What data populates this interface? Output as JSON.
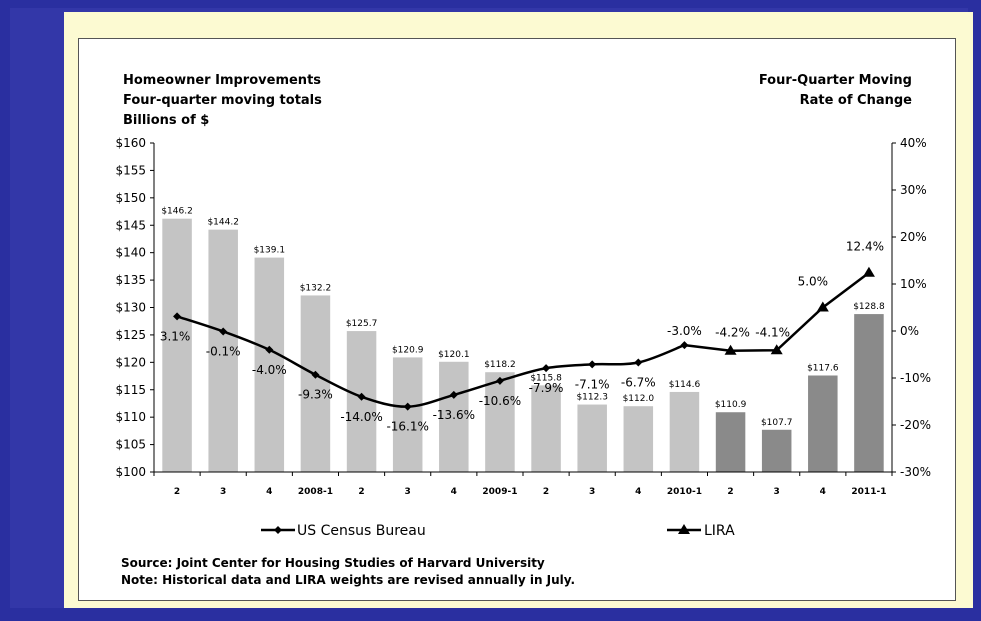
{
  "chart_data": {
    "type": "bar+line",
    "title_left": [
      "Homeowner Improvements",
      "Four-quarter moving totals",
      "Billions of $"
    ],
    "title_right": [
      "Four-Quarter Moving",
      "Rate of Change"
    ],
    "categories": [
      "2",
      "3",
      "4",
      "2008-1",
      "2",
      "3",
      "4",
      "2009-1",
      "2",
      "3",
      "4",
      "2010-1",
      "2",
      "3",
      "4",
      "2011-1"
    ],
    "bar_values": [
      146.2,
      144.2,
      139.1,
      132.2,
      125.7,
      120.9,
      120.1,
      118.2,
      115.8,
      112.3,
      112.0,
      114.6,
      110.9,
      107.7,
      117.6,
      128.8
    ],
    "bar_labels": [
      "$146.2",
      "$144.2",
      "$139.1",
      "$132.2",
      "$125.7",
      "$120.9",
      "$120.1",
      "$118.2",
      "$115.8",
      "$112.3",
      "$112.0",
      "$114.6",
      "$110.9",
      "$107.7",
      "$117.6",
      "$128.8"
    ],
    "bar_colors": [
      "#c4c4c4",
      "#c4c4c4",
      "#c4c4c4",
      "#c4c4c4",
      "#c4c4c4",
      "#c4c4c4",
      "#c4c4c4",
      "#c4c4c4",
      "#c4c4c4",
      "#c4c4c4",
      "#c4c4c4",
      "#c4c4c4",
      "#8a8a8a",
      "#8a8a8a",
      "#8a8a8a",
      "#8a8a8a"
    ],
    "series": [
      {
        "name": "US Census Bureau",
        "marker": "diamond",
        "values": [
          3.1,
          -0.1,
          -4.0,
          -9.3,
          -14.0,
          -16.1,
          -13.6,
          -10.6,
          -7.9,
          -7.1,
          -6.7,
          -3.0,
          null,
          null,
          null,
          null
        ]
      },
      {
        "name": "LIRA",
        "marker": "triangle",
        "values": [
          null,
          null,
          null,
          null,
          null,
          null,
          null,
          null,
          null,
          null,
          null,
          -3.0,
          -4.2,
          -4.1,
          5.0,
          12.4
        ]
      }
    ],
    "line_labels": [
      "3.1%",
      "-0.1%",
      "-4.0%",
      "-9.3%",
      "-14.0%",
      "-16.1%",
      "-13.6%",
      "-10.6%",
      "-7.9%",
      "-7.1%",
      "-6.7%",
      "-3.0%",
      "-4.2%",
      "-4.1%",
      "5.0%",
      "12.4%"
    ],
    "y_left": {
      "min": 100,
      "max": 160,
      "step": 5,
      "ticks": [
        "$100",
        "$105",
        "$110",
        "$115",
        "$120",
        "$125",
        "$130",
        "$135",
        "$140",
        "$145",
        "$150",
        "$155",
        "$160"
      ]
    },
    "y_right": {
      "min": -30,
      "max": 40,
      "step": 10,
      "ticks": [
        "-30%",
        "-20%",
        "-10%",
        "0%",
        "10%",
        "20%",
        "30%",
        "40%"
      ]
    },
    "legend": [
      "US Census Bureau",
      "LIRA"
    ],
    "source_lines": [
      "Source: Joint Center for Housing Studies of Harvard University",
      "Note: Historical data and LIRA weights are revised annually in July."
    ]
  }
}
